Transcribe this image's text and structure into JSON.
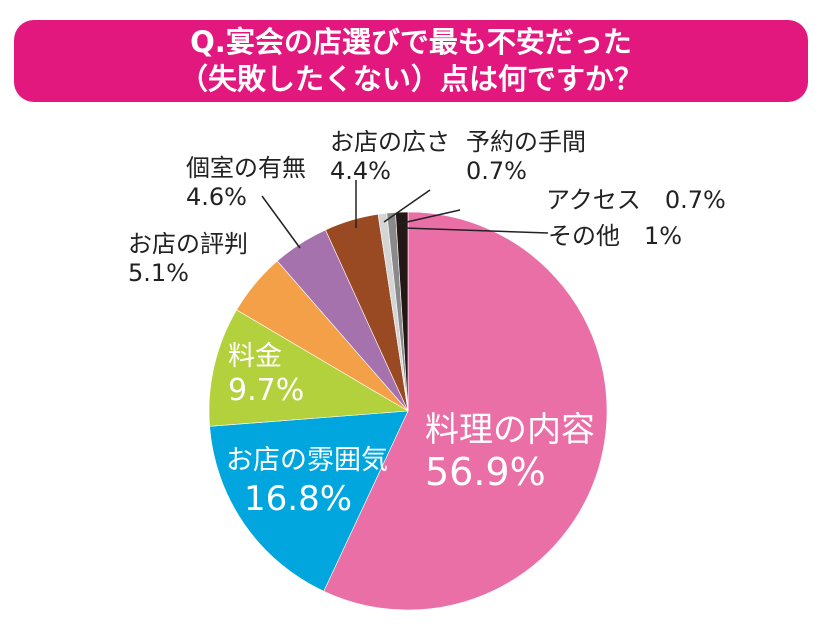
{
  "chart_data": {
    "type": "pie",
    "title_lines": [
      "Q.宴会の店選びで最も不安だった",
      "（失敗したくない）点は何ですか？"
    ],
    "start": "top",
    "direction": "clockwise",
    "slices": [
      {
        "label": "料理の内容",
        "value": 56.9,
        "display": "56.9%",
        "color": "#ea6fa6"
      },
      {
        "label": "お店の雰囲気",
        "value": 16.8,
        "display": "16.8%",
        "color": "#00a6dd"
      },
      {
        "label": "料金",
        "value": 9.7,
        "display": "9.7%",
        "color": "#b3d13d"
      },
      {
        "label": "お店の評判",
        "value": 5.1,
        "display": "5.1%",
        "color": "#f3a048"
      },
      {
        "label": "個室の有無",
        "value": 4.6,
        "display": "4.6%",
        "color": "#a672ad"
      },
      {
        "label": "お店の広さ",
        "value": 4.4,
        "display": "4.4%",
        "color": "#9a4a22"
      },
      {
        "label": "予約の手間",
        "value": 0.7,
        "display": "0.7%",
        "color": "#d5d5d5"
      },
      {
        "label": "アクセス",
        "value": 0.7,
        "display": "0.7%",
        "color": "#8a8a8a"
      },
      {
        "label": "その他",
        "value": 1,
        "display": "1%",
        "color": "#231815"
      }
    ]
  }
}
